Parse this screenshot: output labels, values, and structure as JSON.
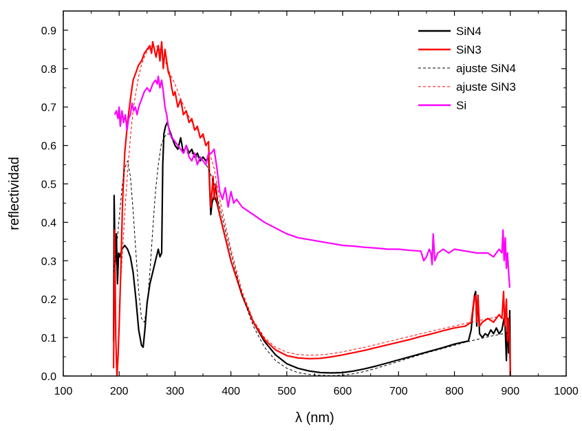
{
  "chart_data": {
    "type": "line",
    "xlabel": "λ (nm)",
    "ylabel": "reflectividad",
    "xlim": [
      100,
      1000
    ],
    "ylim": [
      0,
      0.95
    ],
    "xticks": [
      100,
      200,
      300,
      400,
      500,
      600,
      700,
      800,
      900,
      1000
    ],
    "xtick_labels": [
      "100",
      "200",
      "300",
      "400",
      "500",
      "600",
      "700",
      "800",
      "900",
      "1000"
    ],
    "yticks": [
      0,
      0.1,
      0.2,
      0.3,
      0.4,
      0.5,
      0.6,
      0.7,
      0.8,
      0.9
    ],
    "ytick_labels": [
      "0.0",
      "0.1",
      "0.2",
      "0.3",
      "0.4",
      "0.5",
      "0.6",
      "0.7",
      "0.8",
      "0.9"
    ],
    "grid": false,
    "legend_position": "top-right",
    "series": [
      {
        "name": "SiN4",
        "color": "#000000",
        "style": "solid",
        "x": [
          190,
          191,
          193,
          195,
          197,
          199,
          201,
          205,
          210,
          215,
          220,
          225,
          230,
          235,
          240,
          243,
          246,
          250,
          255,
          260,
          265,
          270,
          273,
          276,
          278,
          280,
          283,
          286,
          290,
          295,
          300,
          305,
          310,
          315,
          320,
          325,
          330,
          335,
          340,
          345,
          350,
          355,
          360,
          362,
          364,
          366,
          370,
          375,
          380,
          390,
          400,
          420,
          440,
          460,
          480,
          500,
          520,
          540,
          560,
          580,
          600,
          620,
          640,
          660,
          680,
          700,
          720,
          740,
          760,
          780,
          800,
          815,
          825,
          830,
          833,
          836,
          838,
          840,
          842,
          845,
          850,
          855,
          860,
          865,
          870,
          875,
          880,
          885,
          890,
          893,
          895,
          897,
          899,
          900
        ],
        "y": [
          0.09,
          0.47,
          0.29,
          0.37,
          0.24,
          0.32,
          0.31,
          0.33,
          0.34,
          0.33,
          0.31,
          0.27,
          0.2,
          0.12,
          0.08,
          0.075,
          0.12,
          0.19,
          0.24,
          0.27,
          0.3,
          0.33,
          0.31,
          0.32,
          0.55,
          0.63,
          0.65,
          0.66,
          0.64,
          0.62,
          0.6,
          0.59,
          0.62,
          0.58,
          0.6,
          0.58,
          0.59,
          0.57,
          0.58,
          0.56,
          0.57,
          0.56,
          0.57,
          0.49,
          0.42,
          0.45,
          0.47,
          0.45,
          0.42,
          0.36,
          0.3,
          0.21,
          0.14,
          0.09,
          0.055,
          0.032,
          0.02,
          0.013,
          0.009,
          0.008,
          0.009,
          0.013,
          0.019,
          0.026,
          0.034,
          0.042,
          0.05,
          0.058,
          0.066,
          0.074,
          0.083,
          0.088,
          0.091,
          0.12,
          0.17,
          0.21,
          0.22,
          0.13,
          0.21,
          0.11,
          0.1,
          0.11,
          0.105,
          0.12,
          0.11,
          0.125,
          0.11,
          0.12,
          0.16,
          0.04,
          0.15,
          0.06,
          0.17,
          0.0
        ]
      },
      {
        "name": "SiN3",
        "color": "#ff0000",
        "style": "solid",
        "x": [
          190,
          192,
          194,
          196,
          198,
          200,
          203,
          206,
          210,
          215,
          220,
          225,
          230,
          235,
          240,
          245,
          250,
          255,
          258,
          260,
          263,
          266,
          270,
          273,
          276,
          279,
          282,
          285,
          288,
          291,
          294,
          297,
          300,
          305,
          310,
          315,
          320,
          325,
          330,
          335,
          340,
          345,
          350,
          355,
          360,
          362,
          364,
          366,
          368,
          370,
          373,
          376,
          380,
          390,
          400,
          420,
          440,
          460,
          480,
          500,
          520,
          540,
          560,
          580,
          600,
          620,
          640,
          660,
          680,
          700,
          720,
          740,
          760,
          780,
          800,
          820,
          830,
          835,
          838,
          840,
          842,
          845,
          850,
          860,
          870,
          880,
          885,
          888,
          890,
          893,
          895,
          897,
          899,
          900
        ],
        "y": [
          0.02,
          0.38,
          0.1,
          0.0,
          0.05,
          0.13,
          0.28,
          0.45,
          0.58,
          0.66,
          0.72,
          0.77,
          0.79,
          0.81,
          0.82,
          0.84,
          0.85,
          0.86,
          0.84,
          0.87,
          0.85,
          0.83,
          0.86,
          0.82,
          0.87,
          0.8,
          0.85,
          0.82,
          0.79,
          0.78,
          0.75,
          0.73,
          0.74,
          0.7,
          0.72,
          0.68,
          0.69,
          0.66,
          0.67,
          0.64,
          0.65,
          0.62,
          0.63,
          0.6,
          0.61,
          0.5,
          0.44,
          0.48,
          0.52,
          0.46,
          0.5,
          0.45,
          0.42,
          0.36,
          0.3,
          0.21,
          0.14,
          0.095,
          0.068,
          0.053,
          0.047,
          0.045,
          0.046,
          0.05,
          0.055,
          0.061,
          0.067,
          0.074,
          0.081,
          0.088,
          0.095,
          0.103,
          0.11,
          0.118,
          0.125,
          0.13,
          0.14,
          0.2,
          0.21,
          0.14,
          0.21,
          0.13,
          0.14,
          0.15,
          0.14,
          0.16,
          0.15,
          0.22,
          0.13,
          0.2,
          0.09,
          0.15,
          0.08,
          0.0
        ]
      },
      {
        "name": "ajuste SiN4",
        "color": "#000000",
        "style": "dashed",
        "x": [
          190,
          195,
          200,
          205,
          210,
          215,
          220,
          225,
          230,
          235,
          240,
          245,
          250,
          255,
          260,
          265,
          270,
          275,
          280,
          285,
          290,
          300,
          310,
          320,
          330,
          340,
          350,
          360,
          370,
          380,
          400,
          420,
          440,
          460,
          480,
          500,
          520,
          540,
          560,
          580,
          600,
          620,
          640,
          660,
          680,
          700,
          720,
          740,
          760,
          780,
          800,
          820,
          840,
          860,
          880,
          900
        ],
        "y": [
          0.27,
          0.33,
          0.41,
          0.49,
          0.54,
          0.56,
          0.52,
          0.43,
          0.32,
          0.22,
          0.15,
          0.14,
          0.18,
          0.27,
          0.38,
          0.48,
          0.55,
          0.6,
          0.62,
          0.63,
          0.63,
          0.6,
          0.59,
          0.58,
          0.58,
          0.57,
          0.56,
          0.54,
          0.5,
          0.44,
          0.32,
          0.21,
          0.13,
          0.075,
          0.04,
          0.02,
          0.009,
          0.004,
          0.002,
          0.001,
          0.002,
          0.006,
          0.012,
          0.02,
          0.029,
          0.038,
          0.047,
          0.056,
          0.064,
          0.072,
          0.08,
          0.088,
          0.095,
          0.102,
          0.108,
          0.113
        ]
      },
      {
        "name": "ajuste SiN3",
        "color": "#ff0000",
        "style": "dashed",
        "x": [
          200,
          205,
          210,
          215,
          220,
          225,
          230,
          235,
          240,
          245,
          250,
          255,
          260,
          265,
          270,
          275,
          280,
          285,
          290,
          300,
          310,
          320,
          330,
          340,
          350,
          360,
          370,
          380,
          400,
          420,
          440,
          460,
          480,
          500,
          520,
          540,
          560,
          580,
          600,
          620,
          640,
          660,
          680,
          700,
          720,
          740,
          760,
          780,
          800,
          820,
          840,
          860,
          880,
          900
        ],
        "y": [
          0.18,
          0.3,
          0.42,
          0.53,
          0.62,
          0.69,
          0.74,
          0.78,
          0.81,
          0.83,
          0.845,
          0.855,
          0.86,
          0.86,
          0.855,
          0.845,
          0.83,
          0.81,
          0.79,
          0.76,
          0.72,
          0.69,
          0.66,
          0.64,
          0.62,
          0.59,
          0.54,
          0.46,
          0.33,
          0.22,
          0.145,
          0.1,
          0.075,
          0.062,
          0.056,
          0.054,
          0.055,
          0.058,
          0.063,
          0.069,
          0.075,
          0.082,
          0.089,
          0.096,
          0.103,
          0.11,
          0.117,
          0.124,
          0.13,
          0.137,
          0.143,
          0.149,
          0.155,
          0.16
        ]
      },
      {
        "name": "Si",
        "color": "#ff00ff",
        "style": "solid",
        "x": [
          192,
          195,
          198,
          200,
          202,
          205,
          208,
          211,
          214,
          217,
          220,
          223,
          226,
          229,
          232,
          235,
          240,
          245,
          250,
          255,
          260,
          265,
          268,
          270,
          273,
          276,
          279,
          282,
          285,
          288,
          291,
          295,
          300,
          305,
          310,
          315,
          320,
          325,
          330,
          335,
          340,
          345,
          350,
          355,
          360,
          365,
          370,
          375,
          380,
          385,
          390,
          395,
          400,
          405,
          410,
          420,
          430,
          440,
          450,
          460,
          480,
          500,
          520,
          540,
          560,
          580,
          600,
          620,
          640,
          660,
          680,
          700,
          720,
          740,
          745,
          750,
          755,
          758,
          760,
          762,
          765,
          770,
          780,
          790,
          800,
          820,
          840,
          860,
          870,
          880,
          885,
          887,
          889,
          891,
          893,
          895,
          897,
          899
        ],
        "y": [
          0.68,
          0.69,
          0.67,
          0.7,
          0.65,
          0.69,
          0.66,
          0.68,
          0.64,
          0.67,
          0.68,
          0.71,
          0.69,
          0.7,
          0.68,
          0.7,
          0.72,
          0.74,
          0.75,
          0.74,
          0.76,
          0.77,
          0.76,
          0.78,
          0.75,
          0.77,
          0.74,
          0.7,
          0.68,
          0.65,
          0.63,
          0.62,
          0.61,
          0.6,
          0.59,
          0.58,
          0.6,
          0.57,
          0.56,
          0.58,
          0.55,
          0.57,
          0.56,
          0.55,
          0.58,
          0.58,
          0.59,
          0.54,
          0.48,
          0.46,
          0.49,
          0.44,
          0.48,
          0.45,
          0.46,
          0.44,
          0.43,
          0.42,
          0.41,
          0.4,
          0.385,
          0.37,
          0.36,
          0.355,
          0.35,
          0.345,
          0.34,
          0.338,
          0.335,
          0.333,
          0.33,
          0.33,
          0.327,
          0.325,
          0.3,
          0.31,
          0.33,
          0.32,
          0.29,
          0.37,
          0.3,
          0.32,
          0.33,
          0.32,
          0.33,
          0.325,
          0.32,
          0.32,
          0.31,
          0.33,
          0.32,
          0.38,
          0.3,
          0.36,
          0.28,
          0.32,
          0.27,
          0.23
        ]
      }
    ]
  }
}
